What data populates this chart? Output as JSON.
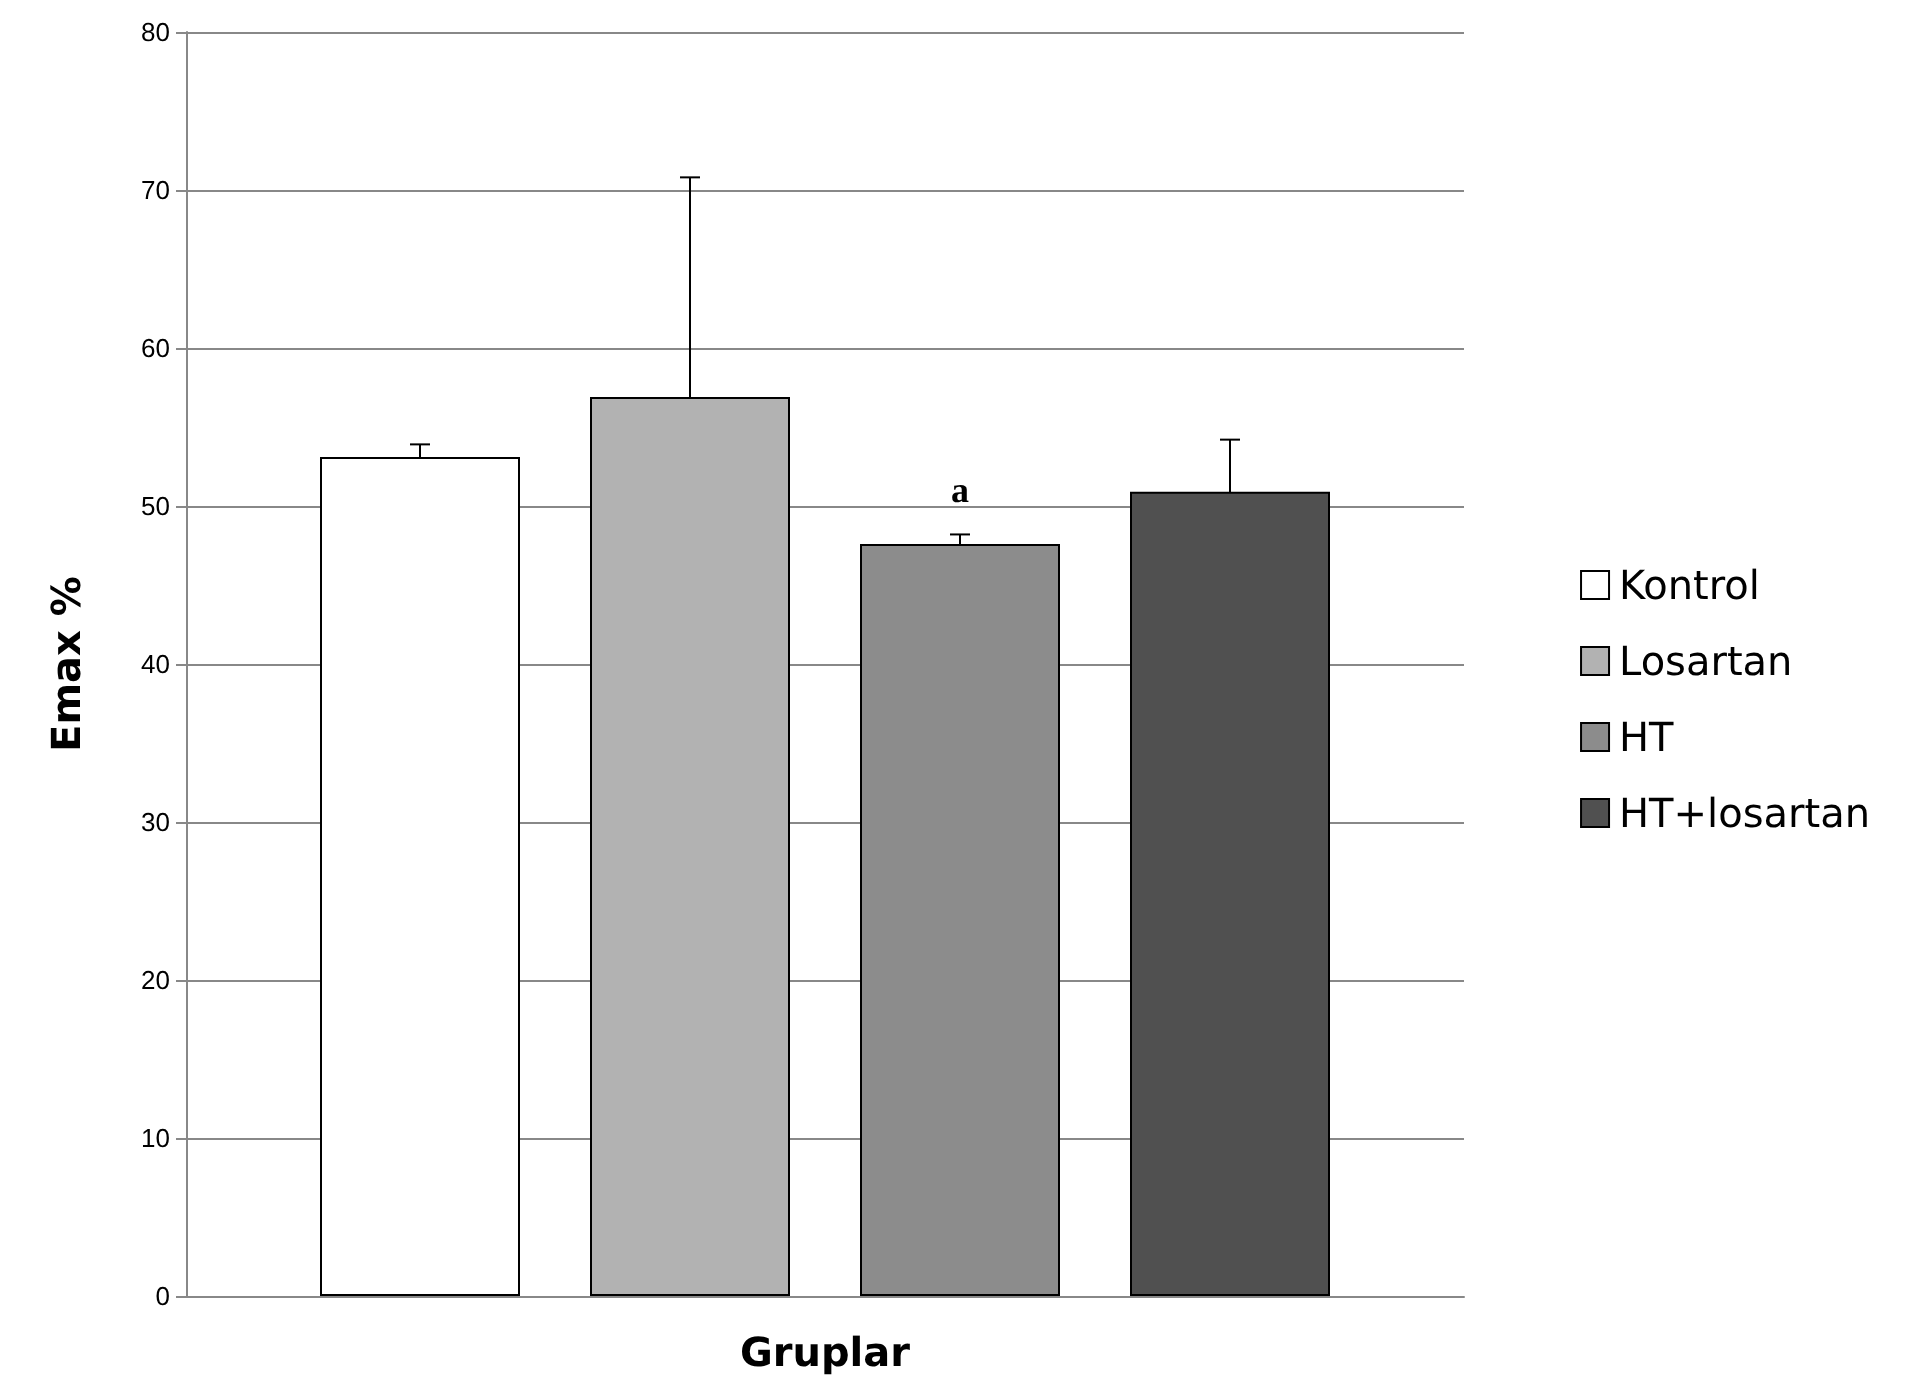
{
  "chart_data": {
    "type": "bar",
    "xlabel": "Gruplar",
    "ylabel": "Emax %",
    "categories": [
      null
    ],
    "series": [
      {
        "name": "Kontrol",
        "color": "#ffffff",
        "values": [
          53.1
        ],
        "errors": [
          0.8
        ]
      },
      {
        "name": "Losartan",
        "color": "#b2b2b2",
        "values": [
          56.9
        ],
        "errors": [
          13.9
        ]
      },
      {
        "name": "HT",
        "color": "#8c8c8c",
        "values": [
          47.6
        ],
        "errors": [
          0.6
        ]
      },
      {
        "name": "HT+losartan",
        "color": "#505050",
        "values": [
          50.9
        ],
        "errors": [
          3.3
        ]
      }
    ],
    "annotations": [
      "a"
    ],
    "ylim": [
      0,
      80
    ],
    "yticks": [
      0,
      10,
      20,
      30,
      40,
      50,
      60,
      70,
      80
    ],
    "grid": "y",
    "legend": "right"
  }
}
